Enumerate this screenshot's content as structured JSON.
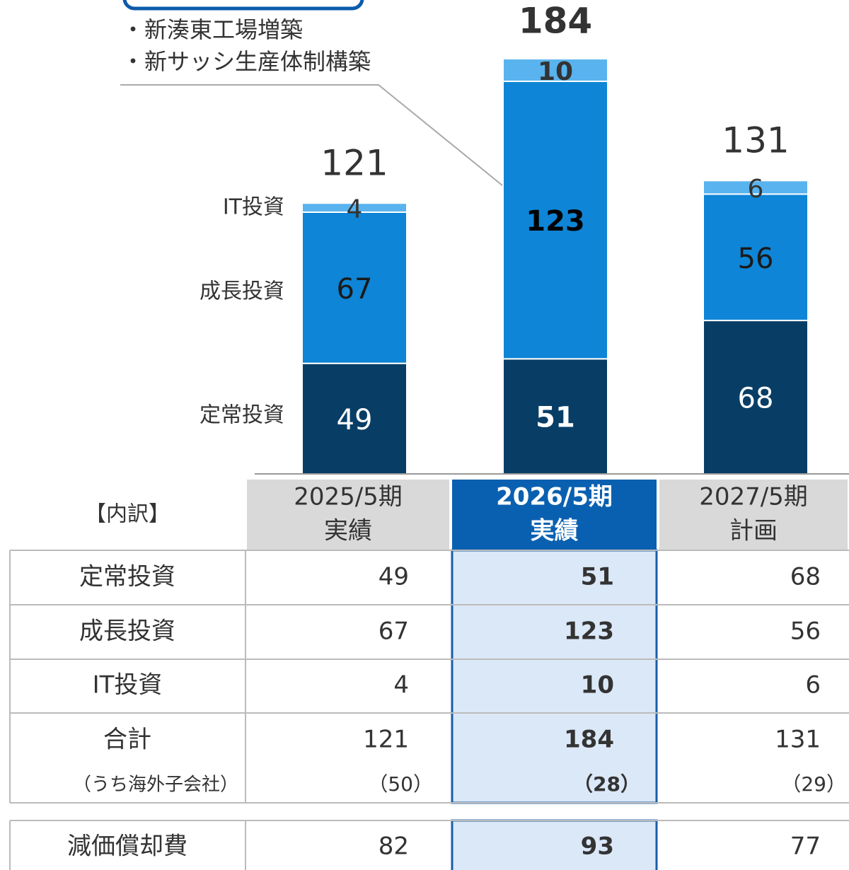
{
  "chart_data": {
    "type": "bar",
    "stacked": true,
    "categories": [
      "2025/5期",
      "2026/5期",
      "2027/5期"
    ],
    "category_sublabels": [
      "実績",
      "実績",
      "計画"
    ],
    "highlight_index": 1,
    "series": [
      {
        "name": "定常投資",
        "color": "#083e66",
        "values": [
          49,
          51,
          68
        ]
      },
      {
        "name": "成長投資",
        "color": "#0e85d6",
        "values": [
          67,
          123,
          56
        ]
      },
      {
        "name": "IT投資",
        "color": "#59b3ee",
        "values": [
          4,
          10,
          6
        ]
      }
    ],
    "totals": [
      121,
      184,
      131
    ],
    "ylim": [
      0,
      200
    ],
    "annotation": {
      "lines": [
        "・新湊東工場増築",
        "・新サッシ生産体制構築"
      ]
    }
  },
  "table": {
    "header": "【内訳】",
    "total_label": "合計",
    "overseas": {
      "label": "（うち海外子会社）",
      "values": [
        50,
        28,
        29
      ],
      "value_labels": [
        "（50）",
        "（28）",
        "（29）"
      ]
    },
    "depreciation": {
      "label": "減価償却費",
      "values": [
        82,
        93,
        77
      ]
    }
  }
}
